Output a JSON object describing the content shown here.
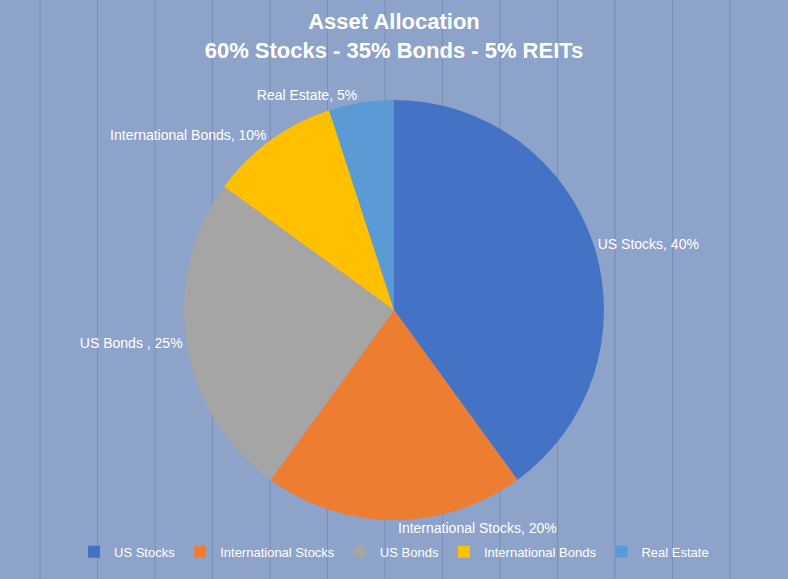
{
  "chart_data": {
    "type": "pie",
    "title": "Asset Allocation",
    "subtitle": "60% Stocks - 35% Bonds - 5% REITs",
    "categories": [
      "US Stocks",
      "International Stocks",
      "US Bonds",
      "International Bonds",
      "Real Estate"
    ],
    "values": [
      40,
      20,
      25,
      10,
      5
    ],
    "value_labels": [
      "US Stocks, 40%",
      "International Stocks, 20%",
      "US Bonds , 25%",
      "International Bonds, 10%",
      "Real Estate, 5%"
    ],
    "colors": [
      "#4472c4",
      "#ed7d31",
      "#a5a5a5",
      "#ffc000",
      "#5b9bd5"
    ],
    "data_labels": true,
    "legend": "bottom"
  }
}
